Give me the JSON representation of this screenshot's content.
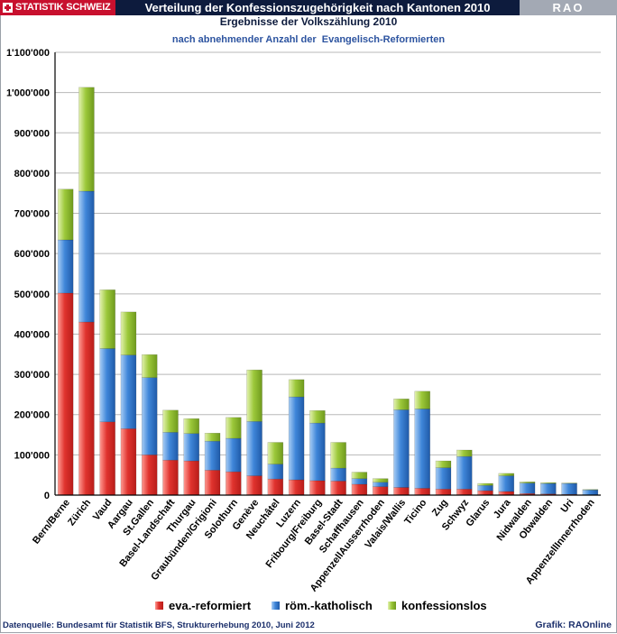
{
  "header": {
    "brand": "STATISTIK SCHWEIZ",
    "title": "Verteilung der Konfessionszugehörigkeit nach Kantonen 2010",
    "rao": "RAO"
  },
  "subtitle": "Ergebnisse der Volkszählung 2010",
  "subsubtitle": "nach abnehmender Anzahl der  Evangelisch-Reformierten",
  "footer": {
    "source": "Datenquelle: Bundesamt für Statistik BFS, Strukturerhebung 2010, Juni 2012",
    "credit": "Grafik: RAOnline"
  },
  "colors": {
    "reformiert": "#e0332e",
    "katholisch": "#3f86d9",
    "konfessionslos": "#9cc83a",
    "grid": "#b8b8b8",
    "axis": "#000000"
  },
  "chart_data": {
    "type": "bar",
    "stacked": true,
    "categories": [
      "Bern/Berne",
      "Zürich",
      "Vaud",
      "Aargau",
      "St.Gallen",
      "Basel-Landschaft",
      "Thurgau",
      "Graubünden/Grigioni",
      "Solothurn",
      "Genève",
      "Neuchâtel",
      "Luzern",
      "Fribourg/Freiburg",
      "Basel-Stadt",
      "Schaffhausen",
      "AppenzellAusserrhoden",
      "Valais/Wallis",
      "Ticino",
      "Zug",
      "Schwyz",
      "Glarus",
      "Jura",
      "Nidwalden",
      "Obwalden",
      "Uri",
      "AppenzellInnerrhoden"
    ],
    "series": [
      {
        "name": "eva.-reformiert",
        "values": [
          502000,
          430000,
          182000,
          165000,
          100000,
          87000,
          85000,
          62000,
          58000,
          48000,
          40000,
          38000,
          36000,
          35000,
          27000,
          21000,
          19000,
          17000,
          15000,
          15000,
          11000,
          9000,
          4000,
          3000,
          2000,
          1000
        ]
      },
      {
        "name": "röm.-katholisch",
        "values": [
          132000,
          325000,
          182000,
          183000,
          192000,
          69000,
          68000,
          72000,
          83000,
          135000,
          37000,
          206000,
          143000,
          32000,
          14000,
          11000,
          193000,
          197000,
          53000,
          81000,
          13000,
          39000,
          26000,
          26000,
          27000,
          12000
        ]
      },
      {
        "name": "konfessionslos",
        "values": [
          126000,
          258000,
          146000,
          107000,
          57000,
          55000,
          37000,
          20000,
          52000,
          128000,
          54000,
          43000,
          31000,
          64000,
          16000,
          9000,
          27000,
          44000,
          17000,
          16000,
          5000,
          6000,
          3000,
          2000,
          1000,
          1000
        ]
      }
    ],
    "ylim": [
      0,
      1100000
    ],
    "yticks": [
      "0",
      "100'000",
      "200'000",
      "300'000",
      "400'000",
      "500'000",
      "600'000",
      "700'000",
      "800'000",
      "900'000",
      "1'000'000",
      "1'100'000"
    ],
    "grid": true,
    "legend": "bottom"
  }
}
